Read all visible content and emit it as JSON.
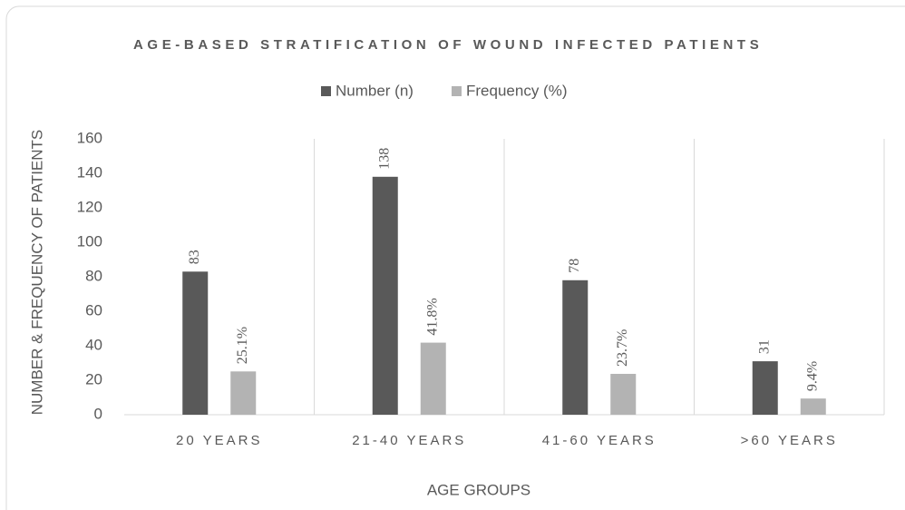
{
  "chart_data": {
    "type": "bar",
    "title": "AGE-BASED STRATIFICATION OF WOUND INFECTED PATIENTS",
    "xlabel": "AGE GROUPS",
    "ylabel": "NUMBER & FREQUENCY OF PATIENTS",
    "categories": [
      "20 YEARS",
      "21-40 YEARS",
      "41-60 YEARS",
      ">60 YEARS"
    ],
    "series": [
      {
        "name": "Number (n)",
        "color": "#595959",
        "values": [
          83,
          138,
          78,
          31
        ]
      },
      {
        "name": "Frequency (%)",
        "color": "#b3b3b3",
        "values": [
          25.1,
          41.8,
          23.7,
          9.4
        ],
        "value_labels": [
          "25.1%",
          "41.8%",
          "23.7%",
          "9.4%"
        ]
      }
    ],
    "ylim": [
      0,
      160
    ],
    "yticks": [
      0,
      20,
      40,
      60,
      80,
      100,
      120,
      140,
      160
    ],
    "legend": "top"
  }
}
